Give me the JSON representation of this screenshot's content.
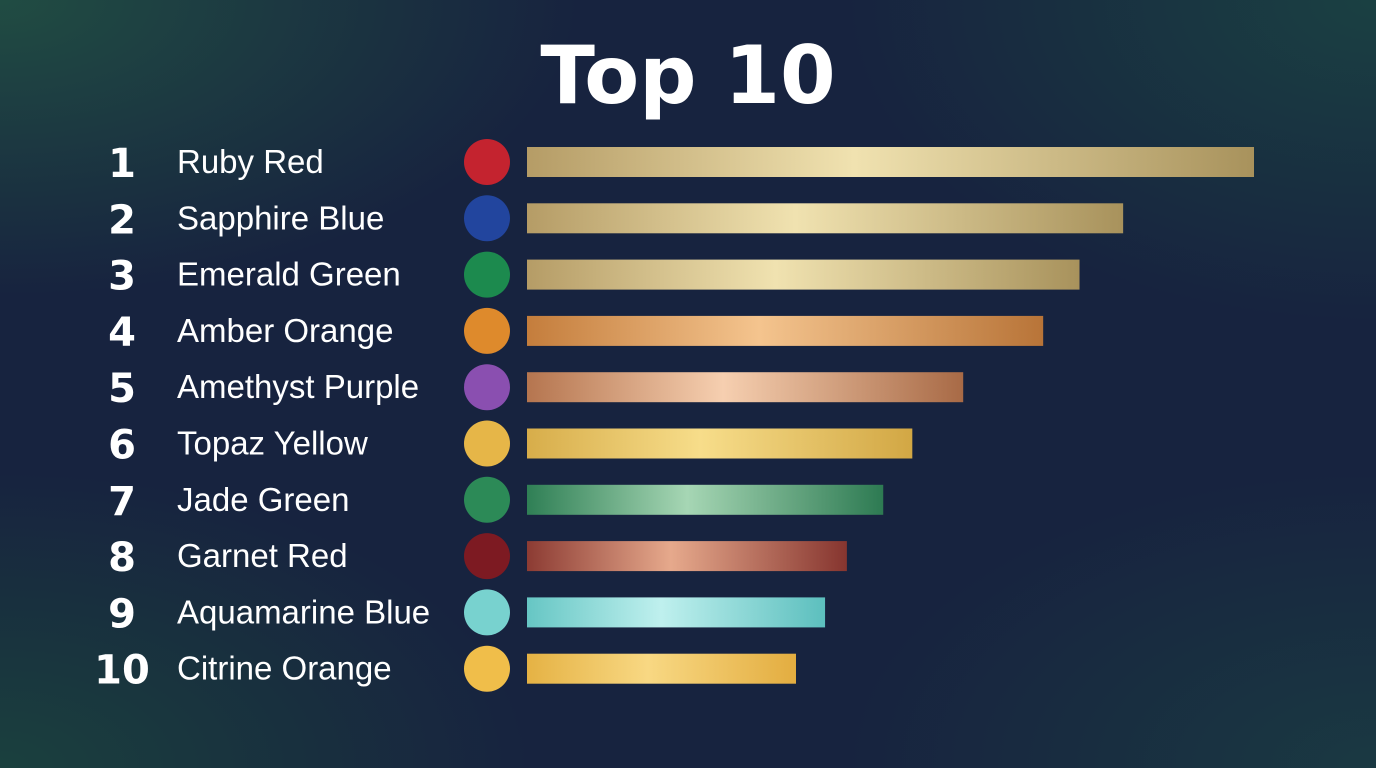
{
  "chart_data": {
    "type": "bar",
    "orientation": "horizontal",
    "title": "Top 10",
    "grid": false,
    "xlabel": "",
    "ylabel": "",
    "items": [
      {
        "rank": "1",
        "label": "Ruby Red",
        "value": 100,
        "swatch": "#c4232f",
        "bar": [
          "#b59c66",
          "#f0e2b0",
          "#a8925c"
        ]
      },
      {
        "rank": "2",
        "label": "Sapphire Blue",
        "value": 82,
        "swatch": "#22459e",
        "bar": [
          "#b59c66",
          "#f0e2b0",
          "#a8925c"
        ]
      },
      {
        "rank": "3",
        "label": "Emerald Green",
        "value": 76,
        "swatch": "#1c8a4e",
        "bar": [
          "#b59c66",
          "#f0e2b0",
          "#a8925c"
        ]
      },
      {
        "rank": "4",
        "label": "Amber Orange",
        "value": 71,
        "swatch": "#de8a2c",
        "bar": [
          "#c47d3c",
          "#f4c48e",
          "#b87438"
        ]
      },
      {
        "rank": "5",
        "label": "Amethyst Purple",
        "value": 60,
        "swatch": "#8a4fb0",
        "bar": [
          "#b5754f",
          "#f6cfb0",
          "#a86a46"
        ]
      },
      {
        "rank": "6",
        "label": "Topaz Yellow",
        "value": 53,
        "swatch": "#e6b648",
        "bar": [
          "#d7ad4a",
          "#f7dd8a",
          "#d2a744"
        ]
      },
      {
        "rank": "7",
        "label": "Jade Green",
        "value": 49,
        "swatch": "#2c8a57",
        "bar": [
          "#2f7f55",
          "#a6d6b4",
          "#2d7a52"
        ]
      },
      {
        "rank": "8",
        "label": "Garnet Red",
        "value": 44,
        "swatch": "#7d1a22",
        "bar": [
          "#8c3b33",
          "#e6a98c",
          "#86352f"
        ]
      },
      {
        "rank": "9",
        "label": "Aquamarine Blue",
        "value": 41,
        "swatch": "#78d2cf",
        "bar": [
          "#66c6c4",
          "#bff0ee",
          "#5cbfbe"
        ]
      },
      {
        "rank": "10",
        "label": "Citrine Orange",
        "value": 37,
        "swatch": "#f0be4a",
        "bar": [
          "#e5b244",
          "#f8d883",
          "#e3ad40"
        ]
      }
    ],
    "xlim": [
      0,
      100
    ]
  }
}
